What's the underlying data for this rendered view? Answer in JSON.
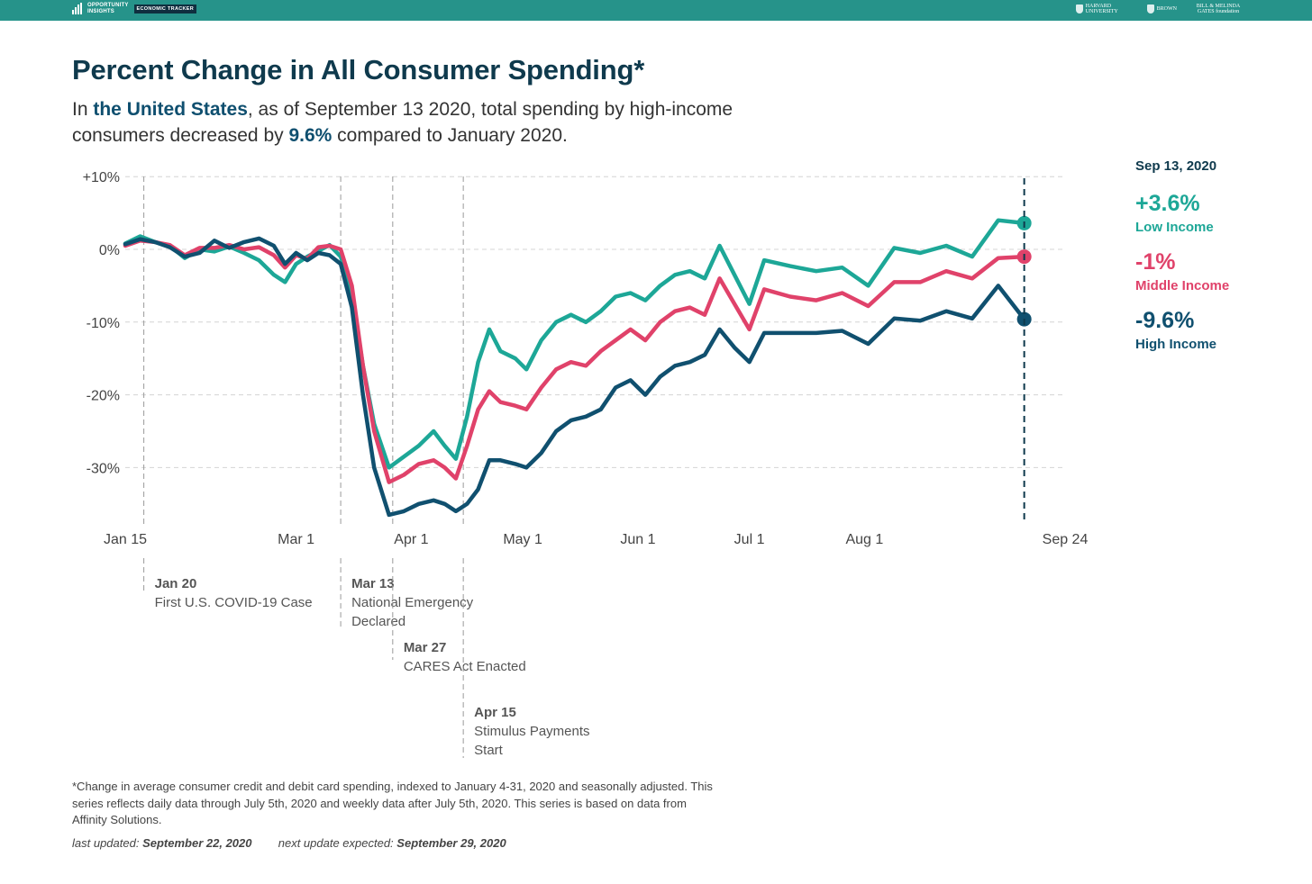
{
  "header": {
    "brand_line1": "OPPORTUNITY",
    "brand_line2": "INSIGHTS",
    "brand_tag": "ECONOMIC TRACKER",
    "partners": [
      "HARVARD UNIVERSITY",
      "BROWN",
      "BILL & MELINDA GATES foundation"
    ]
  },
  "title": "Percent Change in All Consumer Spending*",
  "subtitle": {
    "pre": "In ",
    "place": "the United States",
    "mid": ", as of September 13 2020, total spending by high-income consumers decreased by ",
    "value": "9.6%",
    "post": " compared to January 2020."
  },
  "colors": {
    "low": "#1da797",
    "middle": "#e0426a",
    "high": "#10506f",
    "accent": "#0f3a4d",
    "bar": "#26938a"
  },
  "side_panel": {
    "date": "Sep 13, 2020",
    "low_value": "+3.6%",
    "low_label": "Low Income",
    "middle_value": "-1%",
    "middle_label": "Middle Income",
    "high_value": "-9.6%",
    "high_label": "High Income"
  },
  "chart_data": {
    "type": "line",
    "title": "Percent Change in All Consumer Spending*",
    "xlabel": "",
    "ylabel": "",
    "x_domain": [
      "2020-01-15",
      "2020-09-24"
    ],
    "ylim": [
      -37,
      10
    ],
    "y_ticks": [
      {
        "value": 10,
        "label": "+10%"
      },
      {
        "value": 0,
        "label": "0%"
      },
      {
        "value": -10,
        "label": "-10%"
      },
      {
        "value": -20,
        "label": "-20%"
      },
      {
        "value": -30,
        "label": "-30%"
      }
    ],
    "x_ticks": [
      {
        "date": "2020-01-15",
        "label": "Jan 15"
      },
      {
        "date": "2020-03-01",
        "label": "Mar 1"
      },
      {
        "date": "2020-04-01",
        "label": "Apr 1"
      },
      {
        "date": "2020-05-01",
        "label": "May 1"
      },
      {
        "date": "2020-06-01",
        "label": "Jun 1"
      },
      {
        "date": "2020-07-01",
        "label": "Jul 1"
      },
      {
        "date": "2020-08-01",
        "label": "Aug 1"
      },
      {
        "date": "2020-09-24",
        "label": "Sep 24"
      }
    ],
    "grid": true,
    "events": [
      {
        "date": "2020-01-20",
        "title": "Jan 20",
        "lines": [
          "First U.S. COVID-19 Case"
        ]
      },
      {
        "date": "2020-03-13",
        "title": "Mar 13",
        "lines": [
          "National Emergency",
          "Declared"
        ]
      },
      {
        "date": "2020-03-27",
        "title": "Mar 27",
        "lines": [
          "CARES Act Enacted"
        ]
      },
      {
        "date": "2020-04-15",
        "title": "Apr 15",
        "lines": [
          "Stimulus Payments",
          "Start"
        ]
      }
    ],
    "marker_date": "2020-09-13",
    "series": [
      {
        "key": "low",
        "name": "Low Income",
        "points": [
          [
            "2020-01-15",
            0.8
          ],
          [
            "2020-01-19",
            1.8
          ],
          [
            "2020-01-23",
            1.0
          ],
          [
            "2020-01-27",
            0.5
          ],
          [
            "2020-01-31",
            -1.2
          ],
          [
            "2020-02-04",
            0.0
          ],
          [
            "2020-02-08",
            -0.3
          ],
          [
            "2020-02-12",
            0.4
          ],
          [
            "2020-02-16",
            -0.5
          ],
          [
            "2020-02-20",
            -1.5
          ],
          [
            "2020-02-24",
            -3.5
          ],
          [
            "2020-02-27",
            -4.5
          ],
          [
            "2020-03-01",
            -2.0
          ],
          [
            "2020-03-04",
            -1.0
          ],
          [
            "2020-03-07",
            -0.2
          ],
          [
            "2020-03-10",
            0.6
          ],
          [
            "2020-03-13",
            -1.0
          ],
          [
            "2020-03-16",
            -6.0
          ],
          [
            "2020-03-19",
            -16.0
          ],
          [
            "2020-03-22",
            -24.0
          ],
          [
            "2020-03-26",
            -30.0
          ],
          [
            "2020-03-30",
            -28.5
          ],
          [
            "2020-04-03",
            -27.0
          ],
          [
            "2020-04-07",
            -25.0
          ],
          [
            "2020-04-10",
            -27.0
          ],
          [
            "2020-04-13",
            -28.8
          ],
          [
            "2020-04-16",
            -23.0
          ],
          [
            "2020-04-19",
            -15.5
          ],
          [
            "2020-04-22",
            -11.0
          ],
          [
            "2020-04-25",
            -14.0
          ],
          [
            "2020-04-29",
            -15.0
          ],
          [
            "2020-05-02",
            -16.5
          ],
          [
            "2020-05-06",
            -12.5
          ],
          [
            "2020-05-10",
            -10.0
          ],
          [
            "2020-05-14",
            -9.0
          ],
          [
            "2020-05-18",
            -10.0
          ],
          [
            "2020-05-22",
            -8.5
          ],
          [
            "2020-05-26",
            -6.5
          ],
          [
            "2020-05-30",
            -6.0
          ],
          [
            "2020-06-03",
            -7.0
          ],
          [
            "2020-06-07",
            -5.0
          ],
          [
            "2020-06-11",
            -3.5
          ],
          [
            "2020-06-15",
            -3.0
          ],
          [
            "2020-06-19",
            -4.0
          ],
          [
            "2020-06-23",
            0.5
          ],
          [
            "2020-06-27",
            -3.5
          ],
          [
            "2020-07-01",
            -7.5
          ],
          [
            "2020-07-05",
            -1.5
          ],
          [
            "2020-07-12",
            -2.3
          ],
          [
            "2020-07-19",
            -3.0
          ],
          [
            "2020-07-26",
            -2.5
          ],
          [
            "2020-08-02",
            -5.0
          ],
          [
            "2020-08-09",
            0.2
          ],
          [
            "2020-08-16",
            -0.5
          ],
          [
            "2020-08-23",
            0.5
          ],
          [
            "2020-08-30",
            -1.0
          ],
          [
            "2020-09-06",
            4.0
          ],
          [
            "2020-09-13",
            3.6
          ]
        ]
      },
      {
        "key": "middle",
        "name": "Middle Income",
        "points": [
          [
            "2020-01-15",
            0.5
          ],
          [
            "2020-01-19",
            1.2
          ],
          [
            "2020-01-23",
            1.0
          ],
          [
            "2020-01-27",
            0.6
          ],
          [
            "2020-01-31",
            -0.8
          ],
          [
            "2020-02-04",
            0.2
          ],
          [
            "2020-02-08",
            0.2
          ],
          [
            "2020-02-12",
            0.6
          ],
          [
            "2020-02-16",
            0.0
          ],
          [
            "2020-02-20",
            0.3
          ],
          [
            "2020-02-24",
            -0.8
          ],
          [
            "2020-02-27",
            -2.5
          ],
          [
            "2020-03-01",
            -0.8
          ],
          [
            "2020-03-04",
            -1.3
          ],
          [
            "2020-03-07",
            0.3
          ],
          [
            "2020-03-10",
            0.5
          ],
          [
            "2020-03-13",
            0.0
          ],
          [
            "2020-03-16",
            -5.0
          ],
          [
            "2020-03-19",
            -16.0
          ],
          [
            "2020-03-22",
            -25.0
          ],
          [
            "2020-03-26",
            -32.0
          ],
          [
            "2020-03-30",
            -31.0
          ],
          [
            "2020-04-03",
            -29.5
          ],
          [
            "2020-04-07",
            -29.0
          ],
          [
            "2020-04-10",
            -30.0
          ],
          [
            "2020-04-13",
            -31.5
          ],
          [
            "2020-04-16",
            -27.0
          ],
          [
            "2020-04-19",
            -22.0
          ],
          [
            "2020-04-22",
            -19.5
          ],
          [
            "2020-04-25",
            -21.0
          ],
          [
            "2020-04-29",
            -21.5
          ],
          [
            "2020-05-02",
            -22.0
          ],
          [
            "2020-05-06",
            -19.0
          ],
          [
            "2020-05-10",
            -16.5
          ],
          [
            "2020-05-14",
            -15.5
          ],
          [
            "2020-05-18",
            -16.0
          ],
          [
            "2020-05-22",
            -14.0
          ],
          [
            "2020-05-26",
            -12.5
          ],
          [
            "2020-05-30",
            -11.0
          ],
          [
            "2020-06-03",
            -12.5
          ],
          [
            "2020-06-07",
            -10.0
          ],
          [
            "2020-06-11",
            -8.5
          ],
          [
            "2020-06-15",
            -8.0
          ],
          [
            "2020-06-19",
            -9.0
          ],
          [
            "2020-06-23",
            -4.0
          ],
          [
            "2020-06-27",
            -7.5
          ],
          [
            "2020-07-01",
            -11.0
          ],
          [
            "2020-07-05",
            -5.5
          ],
          [
            "2020-07-12",
            -6.5
          ],
          [
            "2020-07-19",
            -7.0
          ],
          [
            "2020-07-26",
            -6.0
          ],
          [
            "2020-08-02",
            -7.8
          ],
          [
            "2020-08-09",
            -4.5
          ],
          [
            "2020-08-16",
            -4.5
          ],
          [
            "2020-08-23",
            -3.0
          ],
          [
            "2020-08-30",
            -4.0
          ],
          [
            "2020-09-06",
            -1.2
          ],
          [
            "2020-09-13",
            -1.0
          ]
        ]
      },
      {
        "key": "high",
        "name": "High Income",
        "points": [
          [
            "2020-01-15",
            0.7
          ],
          [
            "2020-01-19",
            1.4
          ],
          [
            "2020-01-23",
            1.0
          ],
          [
            "2020-01-27",
            0.3
          ],
          [
            "2020-01-31",
            -1.0
          ],
          [
            "2020-02-04",
            -0.5
          ],
          [
            "2020-02-08",
            1.2
          ],
          [
            "2020-02-12",
            0.2
          ],
          [
            "2020-02-16",
            1.0
          ],
          [
            "2020-02-20",
            1.5
          ],
          [
            "2020-02-24",
            0.5
          ],
          [
            "2020-02-27",
            -2.0
          ],
          [
            "2020-03-01",
            -0.5
          ],
          [
            "2020-03-04",
            -1.5
          ],
          [
            "2020-03-07",
            -0.5
          ],
          [
            "2020-03-10",
            -0.8
          ],
          [
            "2020-03-13",
            -2.0
          ],
          [
            "2020-03-16",
            -8.0
          ],
          [
            "2020-03-19",
            -20.0
          ],
          [
            "2020-03-22",
            -30.0
          ],
          [
            "2020-03-26",
            -36.5
          ],
          [
            "2020-03-30",
            -36.0
          ],
          [
            "2020-04-03",
            -35.0
          ],
          [
            "2020-04-07",
            -34.5
          ],
          [
            "2020-04-10",
            -35.0
          ],
          [
            "2020-04-13",
            -36.0
          ],
          [
            "2020-04-16",
            -35.0
          ],
          [
            "2020-04-19",
            -33.0
          ],
          [
            "2020-04-22",
            -29.0
          ],
          [
            "2020-04-25",
            -29.0
          ],
          [
            "2020-04-29",
            -29.5
          ],
          [
            "2020-05-02",
            -30.0
          ],
          [
            "2020-05-06",
            -28.0
          ],
          [
            "2020-05-10",
            -25.0
          ],
          [
            "2020-05-14",
            -23.5
          ],
          [
            "2020-05-18",
            -23.0
          ],
          [
            "2020-05-22",
            -22.0
          ],
          [
            "2020-05-26",
            -19.0
          ],
          [
            "2020-05-30",
            -18.0
          ],
          [
            "2020-06-03",
            -20.0
          ],
          [
            "2020-06-07",
            -17.5
          ],
          [
            "2020-06-11",
            -16.0
          ],
          [
            "2020-06-15",
            -15.5
          ],
          [
            "2020-06-19",
            -14.5
          ],
          [
            "2020-06-23",
            -11.0
          ],
          [
            "2020-06-27",
            -13.5
          ],
          [
            "2020-07-01",
            -15.5
          ],
          [
            "2020-07-05",
            -11.5
          ],
          [
            "2020-07-12",
            -11.5
          ],
          [
            "2020-07-19",
            -11.5
          ],
          [
            "2020-07-26",
            -11.2
          ],
          [
            "2020-08-02",
            -13.0
          ],
          [
            "2020-08-09",
            -9.5
          ],
          [
            "2020-08-16",
            -9.8
          ],
          [
            "2020-08-23",
            -8.5
          ],
          [
            "2020-08-30",
            -9.5
          ],
          [
            "2020-09-06",
            -5.0
          ],
          [
            "2020-09-13",
            -9.6
          ]
        ]
      }
    ]
  },
  "footnote": "*Change in average consumer credit and debit card spending, indexed to January 4-31, 2020 and seasonally adjusted. This series reflects daily data through July 5th, 2020 and weekly data after July 5th, 2020. This series is based on data from Affinity Solutions.",
  "updates": {
    "last_label": "last updated:",
    "last_date": "September 22, 2020",
    "next_label": "next update expected:",
    "next_date": "September 29, 2020"
  }
}
